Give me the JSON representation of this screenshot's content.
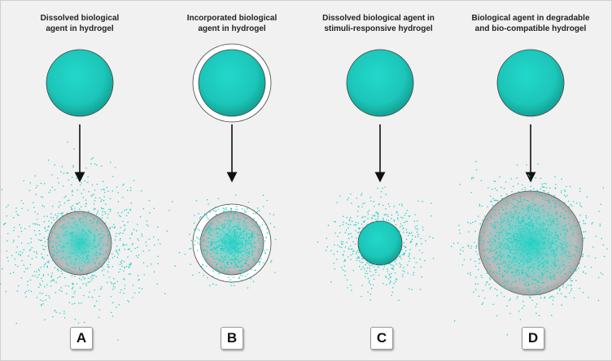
{
  "colors": {
    "background": "#f1f1f1",
    "agent": "#1fd1c4",
    "agent_dark": "#0f9c90",
    "gel": "#b7b7b7",
    "arrow": "#111111"
  },
  "panels": [
    {
      "id": "A",
      "title": "Dissolved biological\nagent in hydrogel",
      "label": "A"
    },
    {
      "id": "B",
      "title": "Incorporated biological\nagent in hydrogel",
      "label": "B"
    },
    {
      "id": "C",
      "title": "Dissolved biological agent in\nstimuli-responsive hydrogel",
      "label": "C"
    },
    {
      "id": "D",
      "title": "Biological agent in degradable\nand bio-compatible hydrogel",
      "label": "D"
    }
  ]
}
